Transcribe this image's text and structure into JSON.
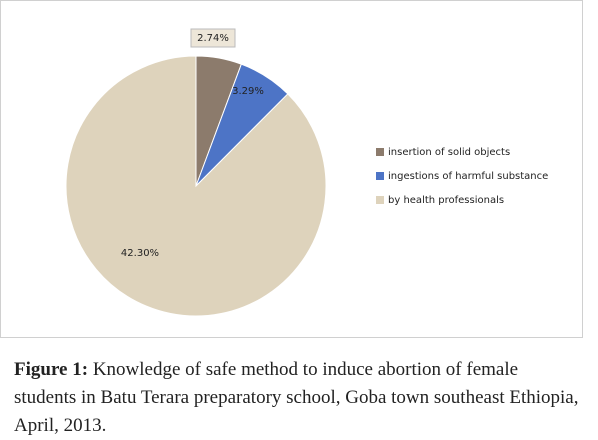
{
  "chart_data": {
    "type": "pie",
    "categories": [
      "insertion of solid objects",
      "ingestions of harmful substance",
      "by health professionals"
    ],
    "values": [
      2.74,
      3.29,
      42.3
    ],
    "value_labels": [
      "2.74%",
      "3.29%",
      "42.30%"
    ],
    "colors": [
      "#8c7b6c",
      "#4d74c6",
      "#ded3bc"
    ],
    "legend": "right"
  },
  "caption": {
    "label": "Figure 1:",
    "text": "Knowledge of safe method to induce abortion of female students in Batu Terara preparatory school, Goba town southeast Ethiopia, April, 2013."
  }
}
